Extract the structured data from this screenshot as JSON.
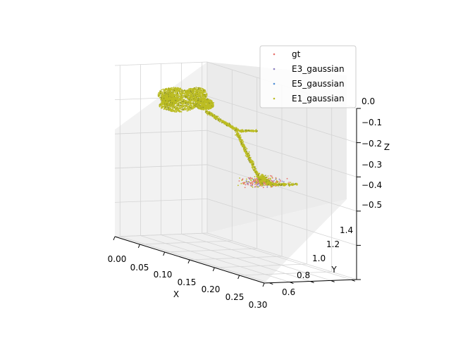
{
  "chart_data": {
    "type": "scatter",
    "projection": "3d",
    "title": "",
    "xlabel": "X",
    "ylabel": "Y",
    "zlabel": "Z",
    "xlim": [
      0.0,
      0.3
    ],
    "ylim": [
      0.55,
      1.45
    ],
    "zlim": [
      -0.5,
      0.0
    ],
    "x_ticks": [
      "0.00",
      "0.05",
      "0.10",
      "0.15",
      "0.20",
      "0.25",
      "0.30"
    ],
    "y_ticks": [
      "0.6",
      "0.8",
      "1.0",
      "1.2",
      "1.4"
    ],
    "z_ticks": [
      "0.0",
      "−0.1",
      "−0.2",
      "−0.3",
      "−0.4",
      "−0.5"
    ],
    "grid": true,
    "legend_position": "top-right",
    "series": [
      {
        "name": "gt",
        "color": "#e8736e",
        "marker": "dot"
      },
      {
        "name": "E3_gaussian",
        "color": "#8c7fbf",
        "marker": "dot"
      },
      {
        "name": "E5_gaussian",
        "color": "#4f8fd6",
        "marker": "dot"
      },
      {
        "name": "E1_gaussian",
        "color": "#bcbd22",
        "marker": "dot"
      }
    ]
  }
}
